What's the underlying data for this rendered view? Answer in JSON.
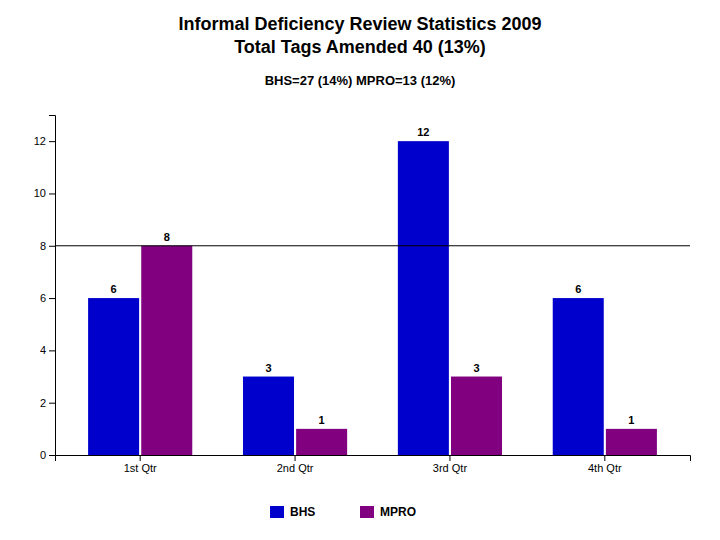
{
  "chart_data": {
    "type": "bar",
    "title": "Informal Deficiency Review Statistics 2009\nTotal Tags Amended 40 (13%)",
    "subtitle": "BHS=27 (14%)  MPRO=13 (12%)",
    "categories": [
      "1st Qtr",
      "2nd Qtr",
      "3rd Qtr",
      "4th Qtr"
    ],
    "series": [
      {
        "name": "BHS",
        "color": "#0000CC",
        "values": [
          6,
          3,
          12,
          6
        ]
      },
      {
        "name": "MPRO",
        "color": "#800080",
        "values": [
          8,
          1,
          3,
          1
        ]
      }
    ],
    "hline": 8,
    "ylim": [
      0,
      13
    ],
    "yticks": [
      0,
      2,
      4,
      6,
      8,
      10,
      12
    ],
    "grid": false,
    "legend": "bottom",
    "data_labels": true
  }
}
